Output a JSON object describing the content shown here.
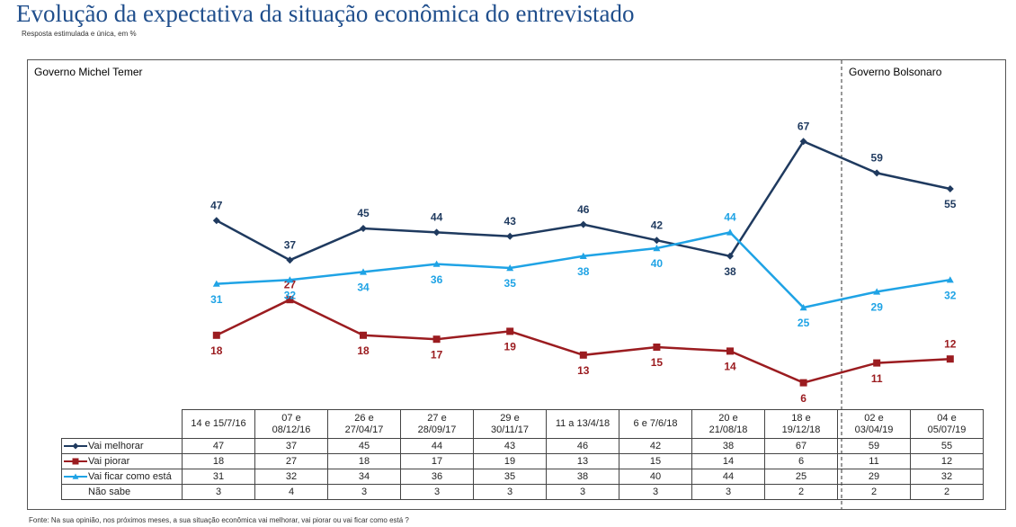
{
  "chart_data": {
    "type": "line",
    "title": "Evolução da expectativa da situação econômica do entrevistado",
    "subtitle": "Resposta estimulada e única, em %",
    "annotations": [
      "Governo Michel Temer",
      "Governo Bolsonaro"
    ],
    "footnote": "Fonte: Na sua opinião, nos próximos meses, a sua situação econômica  vai melhorar, vai piorar ou vai ficar como está ?",
    "categories": [
      "14 e 15/7/16",
      "07 e\n08/12/16",
      "26 e\n27/04/17",
      "27 e\n28/09/17",
      "29 e\n30/11/17",
      "11 a 13/4/18",
      "6 e 7/6/18",
      "20 e\n21/08/18",
      "18 e\n19/12/18",
      "02 e\n03/04/19",
      "04 e\n05/07/19"
    ],
    "series": [
      {
        "name": "Vai melhorar",
        "color": "#1f3a5f",
        "marker": "diamond",
        "values": [
          47,
          37,
          45,
          44,
          43,
          46,
          42,
          38,
          67,
          59,
          55
        ]
      },
      {
        "name": "Vai piorar",
        "color": "#9b1c20",
        "marker": "square",
        "values": [
          18,
          27,
          18,
          17,
          19,
          13,
          15,
          14,
          6,
          11,
          12
        ]
      },
      {
        "name": "Vai ficar como está",
        "color": "#1fa3e5",
        "marker": "triangle",
        "values": [
          31,
          32,
          34,
          36,
          35,
          38,
          40,
          44,
          25,
          29,
          32
        ]
      }
    ],
    "extra_rows": [
      {
        "name": "Não sabe",
        "values": [
          3,
          4,
          3,
          3,
          3,
          3,
          3,
          3,
          2,
          2,
          2
        ]
      }
    ]
  }
}
